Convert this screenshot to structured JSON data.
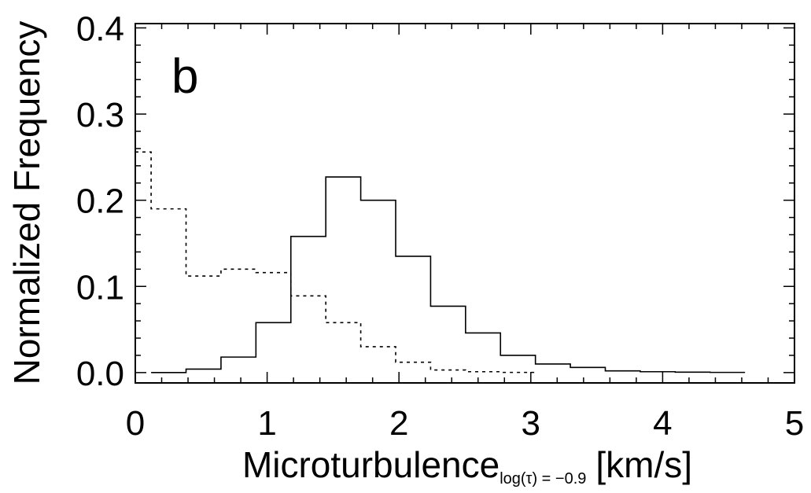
{
  "chart_data": {
    "type": "histogram",
    "panel_label": "b",
    "xlabel": {
      "main": "Microturbulence",
      "subscript": "log(τ) = −0.9",
      "unit": "[km/s]"
    },
    "ylabel": "Normalized Frequency",
    "xlim": [
      0,
      5
    ],
    "ylim": [
      -0.012,
      0.405
    ],
    "x_ticks": [
      0,
      1,
      2,
      3,
      4,
      5
    ],
    "x_tick_labels": [
      "0",
      "1",
      "2",
      "3",
      "4",
      "5"
    ],
    "y_ticks": [
      0.0,
      0.1,
      0.2,
      0.3,
      0.4
    ],
    "y_tick_labels": [
      "0.0",
      "0.1",
      "0.2",
      "0.3",
      "0.4"
    ],
    "grid": false,
    "legend": "none",
    "bin_width": 0.265,
    "series": [
      {
        "style": "solid",
        "bin_edges": [
          0.12,
          0.385,
          0.65,
          0.915,
          1.18,
          1.445,
          1.71,
          1.975,
          2.24,
          2.505,
          2.77,
          3.035,
          3.3,
          3.565,
          3.83,
          4.095,
          4.36,
          4.625
        ],
        "values": [
          0.0,
          0.004,
          0.018,
          0.058,
          0.158,
          0.227,
          0.2,
          0.135,
          0.077,
          0.046,
          0.02,
          0.01,
          0.006,
          0.002,
          0.001,
          0.0005,
          0.0002
        ]
      },
      {
        "style": "dashed",
        "bin_edges": [
          0.12,
          0.385,
          0.65,
          0.915,
          1.18,
          1.445,
          1.71,
          1.975,
          2.24,
          2.505,
          2.77,
          3.035
        ],
        "values": [
          0.19,
          0.112,
          0.12,
          0.116,
          0.089,
          0.058,
          0.03,
          0.012,
          0.003,
          0.001,
          0.0002
        ],
        "start": {
          "x": 0.0,
          "y": 0.256
        }
      }
    ]
  }
}
